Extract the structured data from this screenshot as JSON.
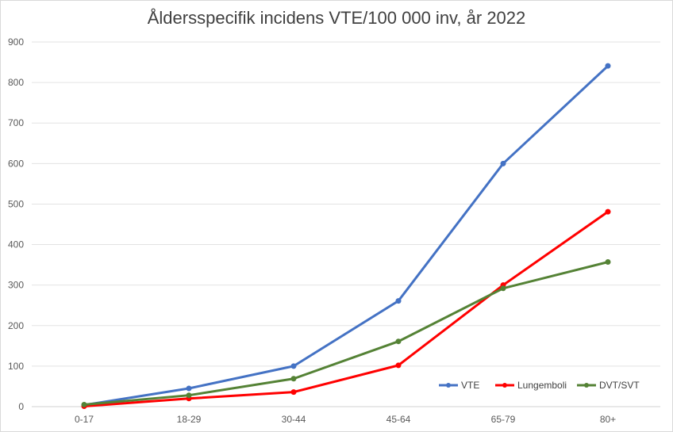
{
  "chart_data": {
    "type": "line",
    "title": "Åldersspecifik incidens VTE/100 000 inv, år 2022",
    "xlabel": "",
    "ylabel": "",
    "categories": [
      "0-17",
      "18-29",
      "30-44",
      "45-64",
      "65-79",
      "80+"
    ],
    "y_ticks": [
      "0",
      "100",
      "200",
      "300",
      "400",
      "500",
      "600",
      "700",
      "800",
      "900"
    ],
    "ylim": [
      0,
      900
    ],
    "grid": true,
    "legend_position": "bottom-right",
    "series": [
      {
        "name": "VTE",
        "color": "#4472c4",
        "values": [
          4,
          45,
          100,
          261,
          600,
          841
        ]
      },
      {
        "name": "Lungemboli",
        "color": "#ff0000",
        "values": [
          1,
          20,
          36,
          102,
          300,
          481
        ]
      },
      {
        "name": "DVT/SVT",
        "color": "#548235",
        "values": [
          5,
          28,
          69,
          161,
          292,
          357
        ]
      }
    ]
  }
}
